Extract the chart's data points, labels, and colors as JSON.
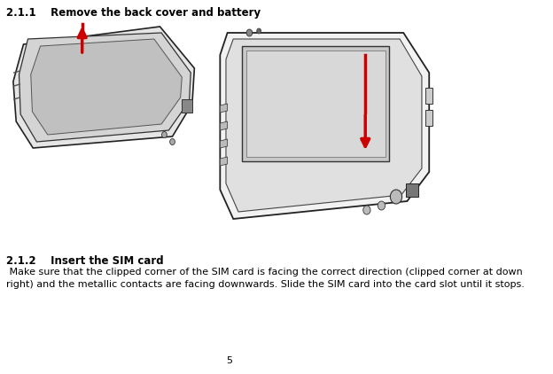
{
  "title_211": "2.1.1    Remove the back cover and battery",
  "title_212": "2.1.2    Insert the SIM card",
  "body_212_line1": " Make sure that the clipped corner of the SIM card is facing the correct direction (clipped corner at down",
  "body_212_line2": "right) and the metallic contacts are facing downwards. Slide the SIM card into the card slot until it stops.",
  "page_number": "5",
  "bg_color": "#ffffff",
  "text_color": "#000000",
  "title_fontsize": 8.5,
  "body_fontsize": 8.0,
  "arrow_color": "#cc0000",
  "device_outline": "#000000",
  "device_fill": "#e8e8e8"
}
